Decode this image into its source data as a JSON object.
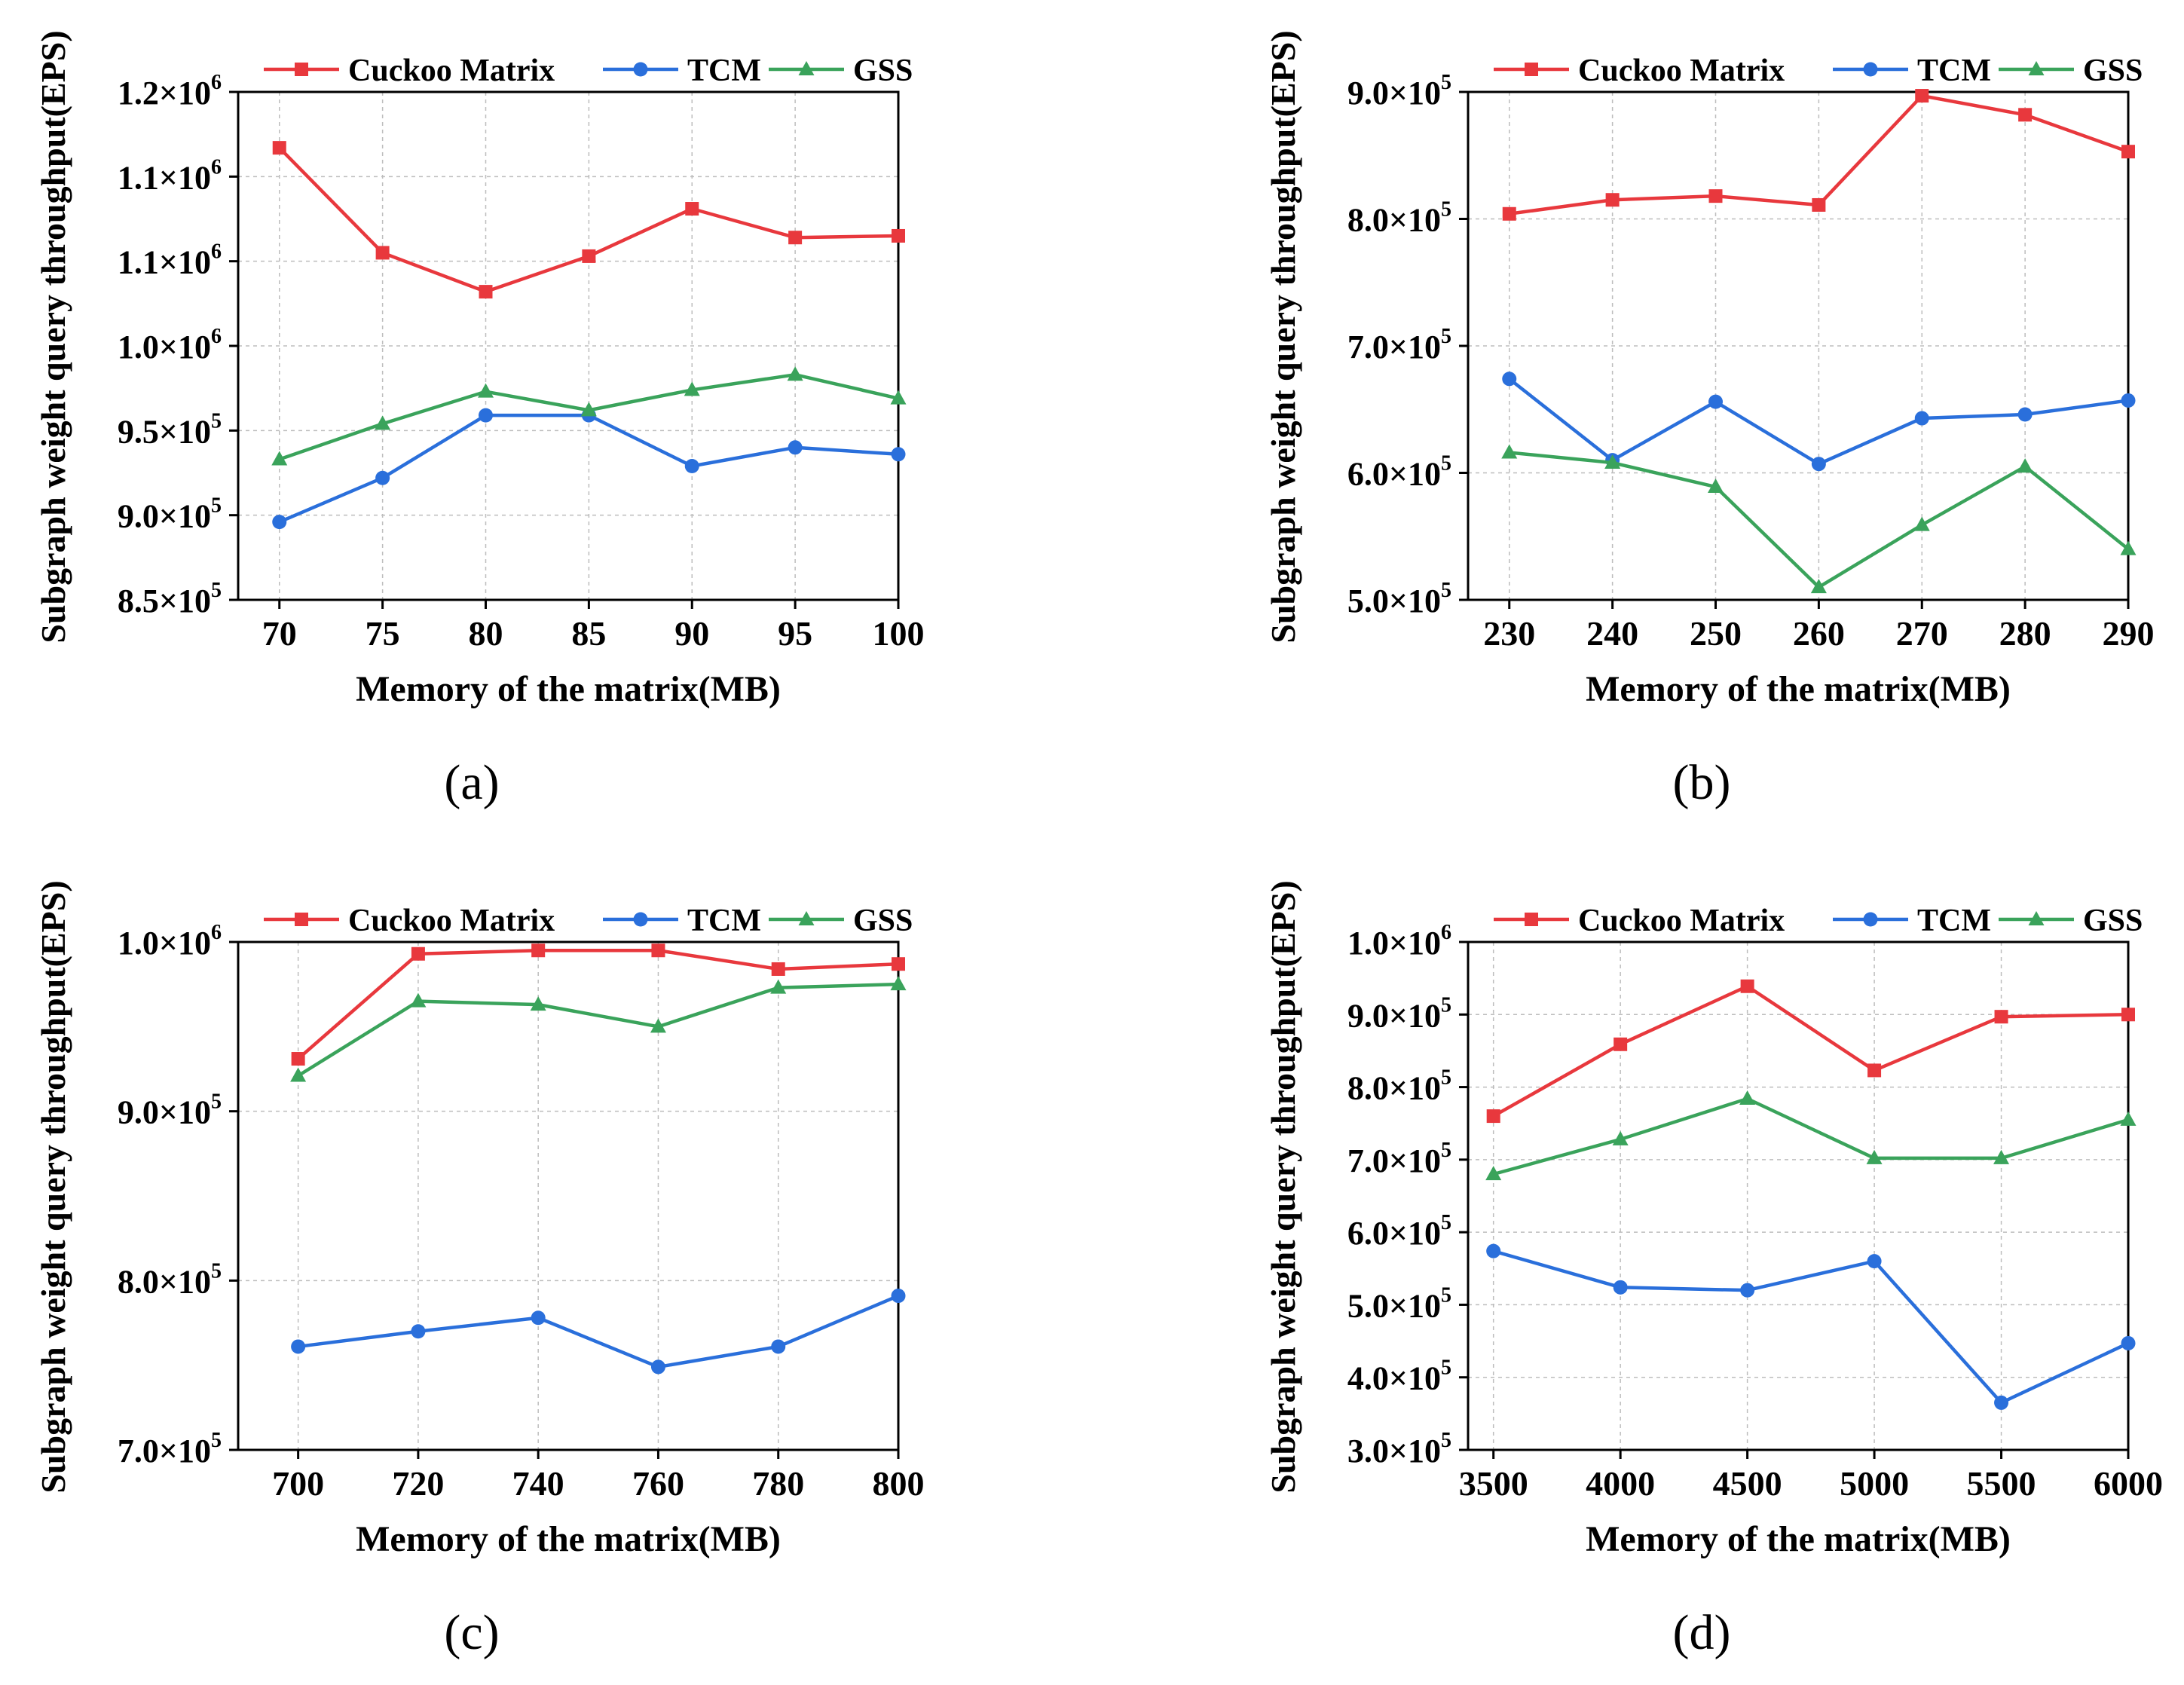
{
  "colors": {
    "cuckoo": "#e8383d",
    "tcm": "#2a6fdb",
    "gss": "#3aa35b",
    "axis": "#000000",
    "grid": "#bdbdbd"
  },
  "chart_data": [
    {
      "type": "line",
      "panel_label": "(a)",
      "xlabel": "Memory of the matrix(MB)",
      "ylabel": "Subgraph weight query throughput(EPS)",
      "categories": [
        "70",
        "75",
        "80",
        "85",
        "90",
        "95",
        "100"
      ],
      "x": [
        70,
        75,
        80,
        85,
        90,
        95,
        100
      ],
      "xlim": [
        68,
        100
      ],
      "ylim": [
        850000,
        1150000
      ],
      "yticks": [
        850000,
        900000,
        950000,
        1000000,
        1050000,
        1100000,
        1150000
      ],
      "ytick_labels": [
        {
          "m": "8.5×10",
          "e": "5"
        },
        {
          "m": "9.0×10",
          "e": "5"
        },
        {
          "m": "9.5×10",
          "e": "5"
        },
        {
          "m": "1.0×10",
          "e": "6"
        },
        {
          "m": "1.1×10",
          "e": "6"
        },
        {
          "m": "1.1×10",
          "e": "6"
        },
        {
          "m": "1.2×10",
          "e": "6"
        }
      ],
      "legend": [
        "Cuckoo Matrix",
        "TCM",
        "GSS"
      ],
      "series": [
        {
          "name": "Cuckoo Matrix",
          "values": [
            1117000,
            1055000,
            1032000,
            1053000,
            1081000,
            1064000,
            1065000
          ]
        },
        {
          "name": "TCM",
          "values": [
            896000,
            922000,
            959000,
            959000,
            929000,
            940000,
            936000
          ]
        },
        {
          "name": "GSS",
          "values": [
            933000,
            954000,
            973000,
            962000,
            974000,
            983000,
            969000
          ]
        }
      ]
    },
    {
      "type": "line",
      "panel_label": "(b)",
      "xlabel": "Memory of the matrix(MB)",
      "ylabel": "Subgraph weight query throughput(EPS)",
      "categories": [
        "230",
        "240",
        "250",
        "260",
        "270",
        "280",
        "290"
      ],
      "x": [
        230,
        240,
        250,
        260,
        270,
        280,
        290
      ],
      "xlim": [
        226,
        290
      ],
      "ylim": [
        500000,
        900000
      ],
      "yticks": [
        500000,
        600000,
        700000,
        800000,
        900000
      ],
      "ytick_labels": [
        {
          "m": "5.0×10",
          "e": "5"
        },
        {
          "m": "6.0×10",
          "e": "5"
        },
        {
          "m": "7.0×10",
          "e": "5"
        },
        {
          "m": "8.0×10",
          "e": "5"
        },
        {
          "m": "9.0×10",
          "e": "5"
        }
      ],
      "legend": [
        "Cuckoo Matrix",
        "TCM",
        "GSS"
      ],
      "series": [
        {
          "name": "Cuckoo Matrix",
          "values": [
            804000,
            815000,
            818000,
            811000,
            897000,
            882000,
            853000
          ]
        },
        {
          "name": "TCM",
          "values": [
            674000,
            610000,
            656000,
            607000,
            643000,
            646000,
            657000
          ]
        },
        {
          "name": "GSS",
          "values": [
            616000,
            608000,
            589000,
            510000,
            559000,
            605000,
            540000
          ]
        }
      ]
    },
    {
      "type": "line",
      "panel_label": "(c)",
      "xlabel": "Memory of the matrix(MB)",
      "ylabel": "Subgraph weight query throughput(EPS)",
      "categories": [
        "700",
        "720",
        "740",
        "760",
        "780",
        "800"
      ],
      "x": [
        700,
        720,
        740,
        760,
        780,
        800
      ],
      "xlim": [
        690,
        800
      ],
      "ylim": [
        700000,
        1000000
      ],
      "yticks": [
        700000,
        800000,
        900000,
        1000000
      ],
      "ytick_labels": [
        {
          "m": "7.0×10",
          "e": "5"
        },
        {
          "m": "8.0×10",
          "e": "5"
        },
        {
          "m": "9.0×10",
          "e": "5"
        },
        {
          "m": "1.0×10",
          "e": "6"
        }
      ],
      "legend": [
        "Cuckoo Matrix",
        "TCM",
        "GSS"
      ],
      "series": [
        {
          "name": "Cuckoo Matrix",
          "values": [
            931000,
            993000,
            995000,
            995000,
            984000,
            987000
          ]
        },
        {
          "name": "TCM",
          "values": [
            761000,
            770000,
            778000,
            749000,
            761000,
            791000
          ]
        },
        {
          "name": "GSS",
          "values": [
            921000,
            965000,
            963000,
            950000,
            973000,
            975000
          ]
        }
      ]
    },
    {
      "type": "line",
      "panel_label": "(d)",
      "xlabel": "Memory of the matrix(MB)",
      "ylabel": "Subgraph weight query throughput(EPS)",
      "categories": [
        "3500",
        "4000",
        "4500",
        "5000",
        "5500",
        "6000"
      ],
      "x": [
        3500,
        4000,
        4500,
        5000,
        5500,
        6000
      ],
      "xlim": [
        3400,
        6000
      ],
      "ylim": [
        300000,
        1000000
      ],
      "yticks": [
        300000,
        400000,
        500000,
        600000,
        700000,
        800000,
        900000,
        1000000
      ],
      "ytick_labels": [
        {
          "m": "3.0×10",
          "e": "5"
        },
        {
          "m": "4.0×10",
          "e": "5"
        },
        {
          "m": "5.0×10",
          "e": "5"
        },
        {
          "m": "6.0×10",
          "e": "5"
        },
        {
          "m": "7.0×10",
          "e": "5"
        },
        {
          "m": "8.0×10",
          "e": "5"
        },
        {
          "m": "9.0×10",
          "e": "5"
        },
        {
          "m": "1.0×10",
          "e": "6"
        }
      ],
      "legend": [
        "Cuckoo Matrix",
        "TCM",
        "GSS"
      ],
      "series": [
        {
          "name": "Cuckoo Matrix",
          "values": [
            760000,
            859000,
            939000,
            823000,
            897000,
            900000
          ]
        },
        {
          "name": "TCM",
          "values": [
            574000,
            524000,
            520000,
            560000,
            365000,
            447000
          ]
        },
        {
          "name": "GSS",
          "values": [
            680000,
            728000,
            784000,
            702000,
            702000,
            755000
          ]
        }
      ]
    }
  ]
}
